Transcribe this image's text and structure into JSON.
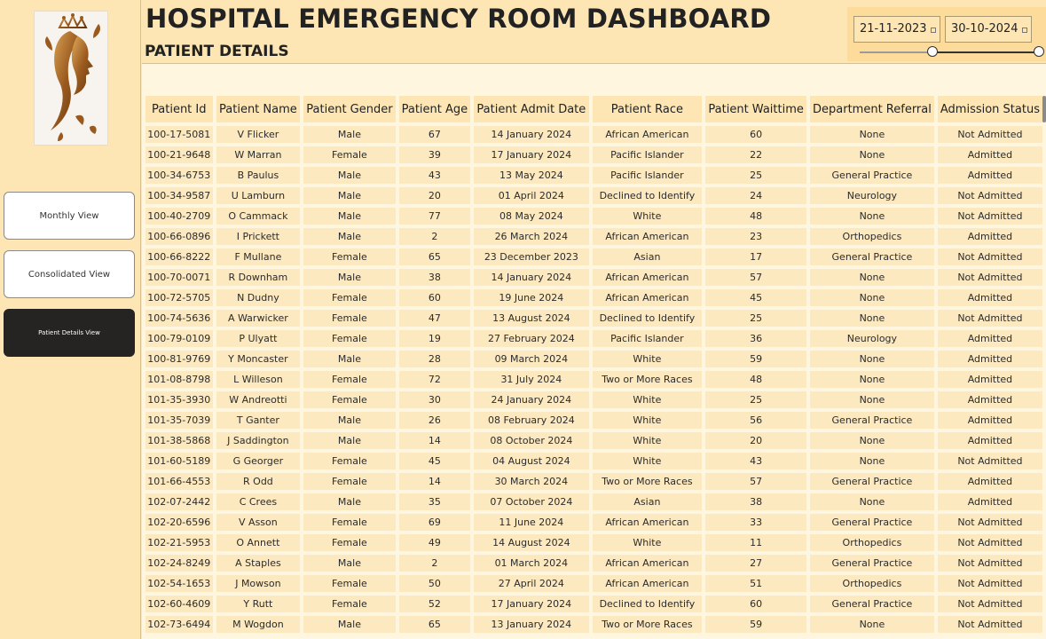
{
  "sidebar": {
    "nav": [
      {
        "label": "Monthly View"
      },
      {
        "label": "Consolidated View"
      },
      {
        "label": "Patient Details View"
      }
    ]
  },
  "header": {
    "title": "HOSPITAL EMERGENCY ROOM DASHBOARD",
    "subtitle": "PATIENT DETAILS",
    "date_filter": {
      "start": "21-11-2023",
      "end": "30-10-2024"
    }
  },
  "table": {
    "columns": [
      "Patient Id",
      "Patient Name",
      "Patient Gender",
      "Patient Age",
      "Patient Admit Date",
      "Patient Race",
      "Patient Waittime",
      "Department Referral",
      "Admission Status"
    ],
    "rows": [
      [
        "100-17-5081",
        "V Flicker",
        "Male",
        "67",
        "14 January 2024",
        "African American",
        "60",
        "None",
        "Not Admitted"
      ],
      [
        "100-21-9648",
        "W Marran",
        "Female",
        "39",
        "17 January 2024",
        "Pacific Islander",
        "22",
        "None",
        "Admitted"
      ],
      [
        "100-34-6753",
        "B Paulus",
        "Male",
        "43",
        "13 May 2024",
        "Pacific Islander",
        "25",
        "General Practice",
        "Admitted"
      ],
      [
        "100-34-9587",
        "U Lamburn",
        "Male",
        "20",
        "01 April 2024",
        "Declined to Identify",
        "24",
        "Neurology",
        "Not Admitted"
      ],
      [
        "100-40-2709",
        "O Cammack",
        "Male",
        "77",
        "08 May 2024",
        "White",
        "48",
        "None",
        "Not Admitted"
      ],
      [
        "100-66-0896",
        "I Prickett",
        "Male",
        "2",
        "26 March 2024",
        "African American",
        "23",
        "Orthopedics",
        "Admitted"
      ],
      [
        "100-66-8222",
        "F Mullane",
        "Female",
        "65",
        "23 December 2023",
        "Asian",
        "17",
        "General Practice",
        "Not Admitted"
      ],
      [
        "100-70-0071",
        "R Downham",
        "Male",
        "38",
        "14 January 2024",
        "African American",
        "57",
        "None",
        "Not Admitted"
      ],
      [
        "100-72-5705",
        "N Dudny",
        "Female",
        "60",
        "19 June 2024",
        "African American",
        "45",
        "None",
        "Admitted"
      ],
      [
        "100-74-5636",
        "A Warwicker",
        "Female",
        "47",
        "13 August 2024",
        "Declined to Identify",
        "25",
        "None",
        "Not Admitted"
      ],
      [
        "100-79-0109",
        "P Ulyatt",
        "Female",
        "19",
        "27 February 2024",
        "Pacific Islander",
        "36",
        "Neurology",
        "Admitted"
      ],
      [
        "100-81-9769",
        "Y Moncaster",
        "Male",
        "28",
        "09 March 2024",
        "White",
        "59",
        "None",
        "Admitted"
      ],
      [
        "101-08-8798",
        "L Willeson",
        "Female",
        "72",
        "31 July 2024",
        "Two or More Races",
        "48",
        "None",
        "Admitted"
      ],
      [
        "101-35-3930",
        "W Andreotti",
        "Female",
        "30",
        "24 January 2024",
        "White",
        "25",
        "None",
        "Admitted"
      ],
      [
        "101-35-7039",
        "T Ganter",
        "Male",
        "26",
        "08 February 2024",
        "White",
        "56",
        "General Practice",
        "Admitted"
      ],
      [
        "101-38-5868",
        "J Saddington",
        "Male",
        "14",
        "08 October 2024",
        "White",
        "20",
        "None",
        "Admitted"
      ],
      [
        "101-60-5189",
        "G Georger",
        "Female",
        "45",
        "04 August 2024",
        "White",
        "43",
        "None",
        "Not Admitted"
      ],
      [
        "101-66-4553",
        "R Odd",
        "Female",
        "14",
        "30 March 2024",
        "Two or More Races",
        "57",
        "General Practice",
        "Admitted"
      ],
      [
        "102-07-2442",
        "C Crees",
        "Male",
        "35",
        "07 October 2024",
        "Asian",
        "38",
        "None",
        "Admitted"
      ],
      [
        "102-20-6596",
        "V Asson",
        "Female",
        "69",
        "11 June 2024",
        "African American",
        "33",
        "General Practice",
        "Not Admitted"
      ],
      [
        "102-21-5953",
        "O Annett",
        "Female",
        "49",
        "14 August 2024",
        "White",
        "11",
        "Orthopedics",
        "Not Admitted"
      ],
      [
        "102-24-8249",
        "A Staples",
        "Male",
        "2",
        "01 March 2024",
        "African American",
        "27",
        "General Practice",
        "Not Admitted"
      ],
      [
        "102-54-1653",
        "J Mowson",
        "Female",
        "50",
        "27 April 2024",
        "African American",
        "51",
        "Orthopedics",
        "Not Admitted"
      ],
      [
        "102-60-4609",
        "Y Rutt",
        "Female",
        "52",
        "17 January 2024",
        "Declined to Identify",
        "60",
        "General Practice",
        "Not Admitted"
      ],
      [
        "102-73-6494",
        "M Wogdon",
        "Male",
        "65",
        "13 January 2024",
        "Two or More Races",
        "59",
        "None",
        "Not Admitted"
      ]
    ]
  }
}
